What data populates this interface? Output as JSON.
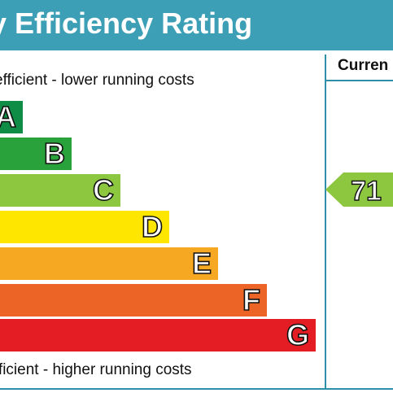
{
  "title": "y Efficiency Rating",
  "column_header": "Curren",
  "top_caption": "efficient - lower running costs",
  "bottom_caption": "fficient - higher running costs",
  "colors": {
    "title_bar": "#3d9fb5",
    "frame": "#2e90a8"
  },
  "chart_data": {
    "type": "bar",
    "categories": [
      "A",
      "B",
      "C",
      "D",
      "E",
      "F",
      "G"
    ],
    "band_colors": [
      "#0f8c46",
      "#2aa23b",
      "#8dc63f",
      "#ffe600",
      "#f6a823",
      "#ec6426",
      "#e31d23"
    ],
    "current": {
      "value": "71",
      "band": "C",
      "color": "#8dc63f"
    }
  }
}
